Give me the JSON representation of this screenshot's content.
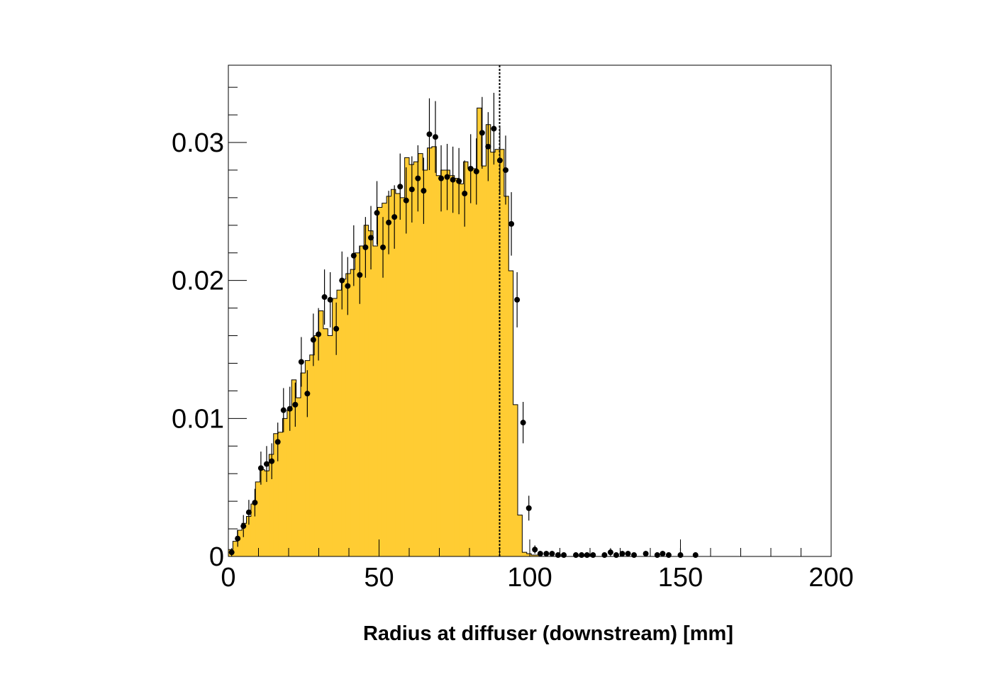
{
  "chart_data": {
    "type": "bar",
    "title": "",
    "xlabel": "Radius at diffuser (downstream) [mm]",
    "ylabel": "",
    "xlim": [
      0,
      200
    ],
    "ylim": [
      0,
      0.0356
    ],
    "grid": false,
    "xticks": [
      {
        "value": 0,
        "label": "0"
      },
      {
        "value": 50,
        "label": "50"
      },
      {
        "value": 100,
        "label": "100"
      },
      {
        "value": 150,
        "label": "150"
      },
      {
        "value": 200,
        "label": "200"
      }
    ],
    "yticks": [
      {
        "value": 0,
        "label": "0"
      },
      {
        "value": 0.01,
        "label": "0.01"
      },
      {
        "value": 0.02,
        "label": "0.02"
      },
      {
        "value": 0.03,
        "label": "0.03"
      }
    ],
    "cut_line_x": 90,
    "series": [
      {
        "kind": "histogram",
        "color": "#ffcc33",
        "bin_width": 1.5,
        "values": [
          0.0005,
          0.0011,
          0.0019,
          0.0024,
          0.0029,
          0.0038,
          0.0054,
          0.0063,
          0.0062,
          0.0074,
          0.0089,
          0.009,
          0.01,
          0.0106,
          0.0128,
          0.0115,
          0.0133,
          0.0142,
          0.0146,
          0.016,
          0.0178,
          0.0165,
          0.016,
          0.0187,
          0.0193,
          0.0201,
          0.0205,
          0.0208,
          0.022,
          0.0225,
          0.024,
          0.0236,
          0.0225,
          0.0253,
          0.0256,
          0.0261,
          0.0266,
          0.0263,
          0.026,
          0.0289,
          0.0284,
          0.0286,
          0.0292,
          0.028,
          0.0296,
          0.0297,
          0.0276,
          0.028,
          0.028,
          0.0276,
          0.0274,
          0.027,
          0.0286,
          0.0281,
          0.0281,
          0.0325,
          0.0283,
          0.0313,
          0.0293,
          0.0295,
          0.0295,
          0.0261,
          0.0207,
          0.011,
          0.003,
          0.0003,
          0.0002,
          0.0001,
          0.0001
        ]
      },
      {
        "kind": "points",
        "color": "#000000",
        "x": [
          1.1,
          3.1,
          5.0,
          6.8,
          8.8,
          10.8,
          12.7,
          14.4,
          16.4,
          18.3,
          20.4,
          22.2,
          24.2,
          26.2,
          28.2,
          29.9,
          31.9,
          33.8,
          35.8,
          37.7,
          39.6,
          41.6,
          43.6,
          45.5,
          47.3,
          49.3,
          51.3,
          53.2,
          55.1,
          57.0,
          59.0,
          60.9,
          62.9,
          64.8,
          66.7,
          68.7,
          70.6,
          72.6,
          74.5,
          76.5,
          78.4,
          80.4,
          82.3,
          84.2,
          86.2,
          88.1,
          90.1,
          92.0,
          93.9,
          95.8,
          97.8,
          99.7,
          101.7,
          103.5,
          105.5,
          107.4,
          109.4,
          111.3,
          115.3,
          117.2,
          119.0,
          121.0,
          124.8,
          126.8,
          128.7,
          130.7,
          132.6,
          134.6,
          138.5,
          142.3,
          144.1,
          146.1,
          150.0,
          155.0
        ],
        "y": [
          0.0003,
          0.0013,
          0.0022,
          0.0032,
          0.0039,
          0.0064,
          0.0067,
          0.0069,
          0.0083,
          0.0106,
          0.0107,
          0.011,
          0.0141,
          0.0118,
          0.0157,
          0.0161,
          0.0188,
          0.0186,
          0.0165,
          0.02,
          0.0196,
          0.0218,
          0.0204,
          0.0224,
          0.0231,
          0.0249,
          0.0224,
          0.0242,
          0.0246,
          0.0268,
          0.0258,
          0.0266,
          0.0274,
          0.0265,
          0.0306,
          0.0304,
          0.0274,
          0.0275,
          0.0273,
          0.0272,
          0.0263,
          0.0281,
          0.0279,
          0.0307,
          0.0297,
          0.031,
          0.0287,
          0.028,
          0.0241,
          0.0186,
          0.0097,
          0.0035,
          0.0005,
          0.0002,
          0.0002,
          0.0002,
          0.0001,
          0.0001,
          0.0001,
          0.0001,
          0.0001,
          0.0001,
          0.0001,
          0.0003,
          0.0001,
          0.0002,
          0.0002,
          0.0001,
          0.0002,
          0.0001,
          0.0002,
          0.0001,
          0.0001,
          0.0001
        ],
        "err": [
          0.0003,
          0.0006,
          0.0008,
          0.0009,
          0.001,
          0.0012,
          0.0013,
          0.0013,
          0.0014,
          0.0016,
          0.0016,
          0.0016,
          0.0018,
          0.0017,
          0.0019,
          0.0019,
          0.002,
          0.002,
          0.0019,
          0.0021,
          0.0021,
          0.0022,
          0.0021,
          0.0022,
          0.0023,
          0.0023,
          0.0022,
          0.0023,
          0.0023,
          0.0024,
          0.0024,
          0.0024,
          0.0024,
          0.0024,
          0.0026,
          0.0026,
          0.0024,
          0.0024,
          0.0024,
          0.0024,
          0.0024,
          0.0025,
          0.0024,
          0.0026,
          0.0025,
          0.0026,
          0.0025,
          0.0025,
          0.0023,
          0.002,
          0.0015,
          0.0009,
          0.0003,
          0.0002,
          0.0002,
          0.0002,
          0.0001,
          0.0001,
          0.0001,
          0.0002,
          0.0001,
          0.0001,
          0.0001,
          0.0003,
          0.0001,
          0.0002,
          0.0002,
          0.0001,
          0.0002,
          0.0001,
          0.0002,
          0.0001,
          0.0005,
          0.0001
        ]
      }
    ]
  }
}
